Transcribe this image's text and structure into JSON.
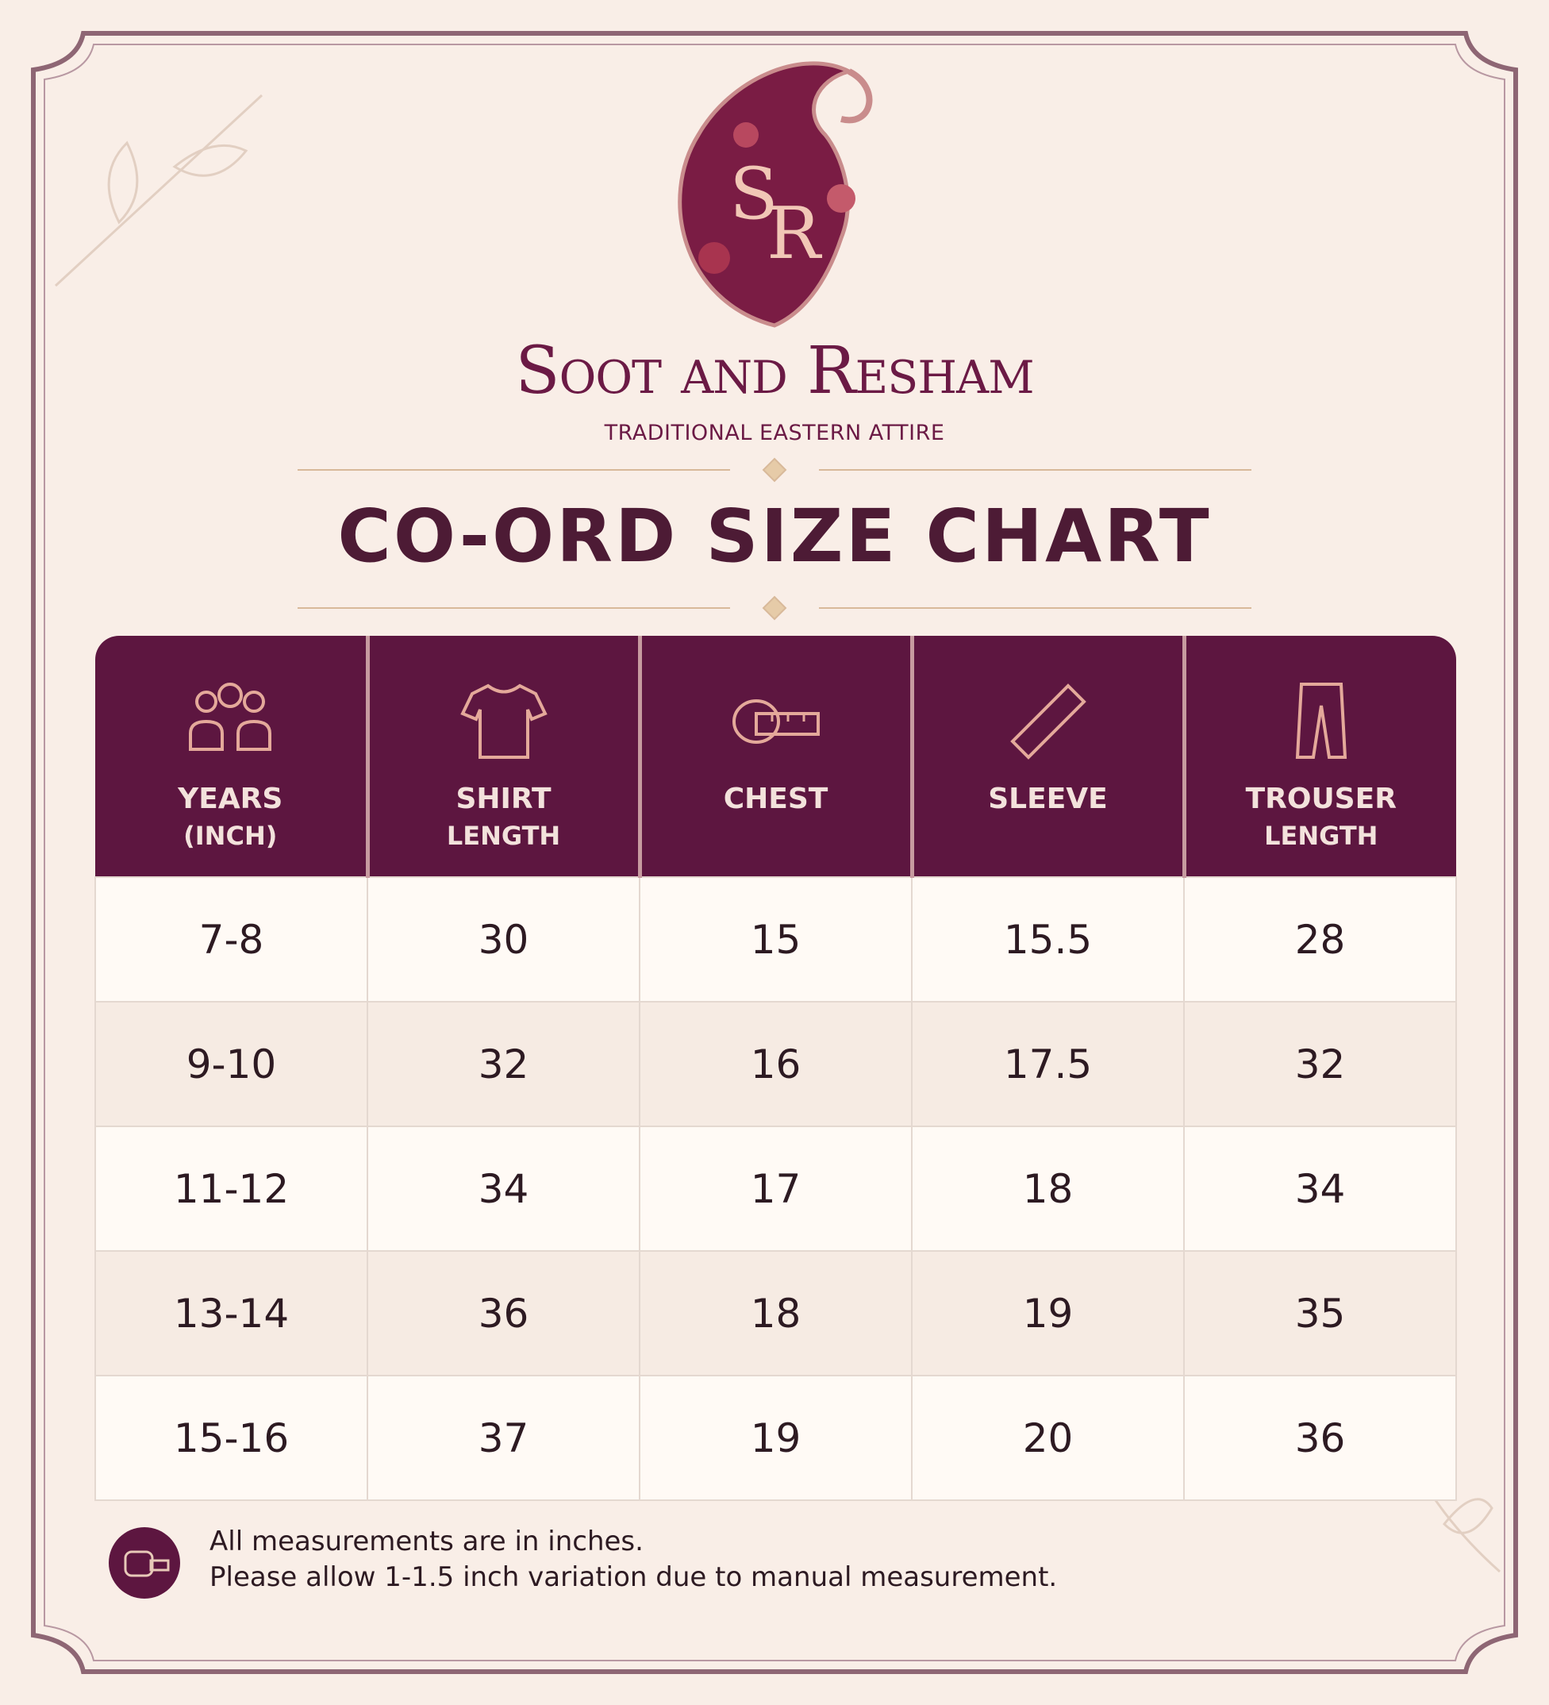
{
  "logo": {
    "monogram_first": "S",
    "monogram_second": "R"
  },
  "brand": {
    "name": "Soot and Resham",
    "tagline": "TRADITIONAL EASTERN ATTIRE"
  },
  "title": "CO-ORD SIZE CHART",
  "table": {
    "header": [
      [
        "YEARS",
        "(INCH)"
      ],
      [
        "SHIRT",
        "LENGTH"
      ],
      [
        "CHEST"
      ],
      [
        "SLEEVE"
      ],
      [
        "TROUSER",
        "LENGTH"
      ]
    ],
    "rows": [
      [
        "7-8",
        30,
        15,
        15.5,
        28
      ],
      [
        "9-10",
        32,
        16,
        17.5,
        32
      ],
      [
        "11-12",
        34,
        17,
        18,
        34
      ],
      [
        "13-14",
        36,
        18,
        19,
        35
      ],
      [
        "15-16",
        37,
        19,
        20,
        36
      ]
    ]
  },
  "notes": [
    "All measurements are in inches.",
    "Please allow 1-1.5 inch variation due to manual measurement."
  ]
}
